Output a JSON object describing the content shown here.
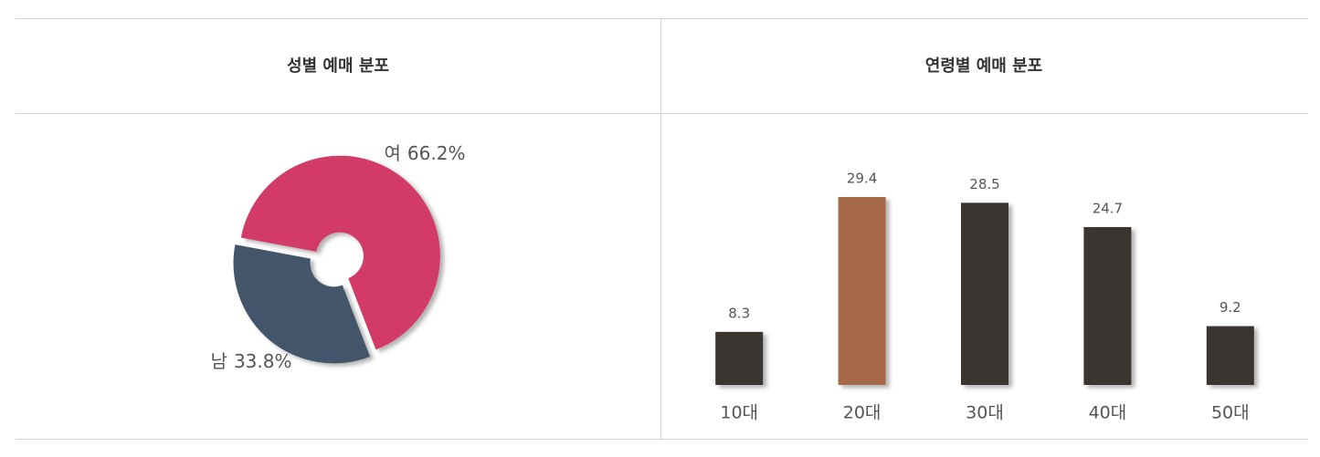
{
  "chart_data": [
    {
      "type": "pie",
      "title": "성별 예매 분포",
      "categories": [
        "여",
        "남"
      ],
      "values": [
        66.2,
        33.8
      ],
      "value_labels": [
        "66.2%",
        "33.8%"
      ],
      "colors": [
        "#d23a68",
        "#42546b"
      ]
    },
    {
      "type": "bar",
      "title": "연령별 예매 분포",
      "categories": [
        "10대",
        "20대",
        "30대",
        "40대",
        "50대"
      ],
      "values": [
        8.3,
        29.4,
        28.5,
        24.7,
        9.2
      ],
      "colors": [
        "#3a3532",
        "#a5684a",
        "#3a3532",
        "#3a3532",
        "#3a3532"
      ]
    }
  ]
}
